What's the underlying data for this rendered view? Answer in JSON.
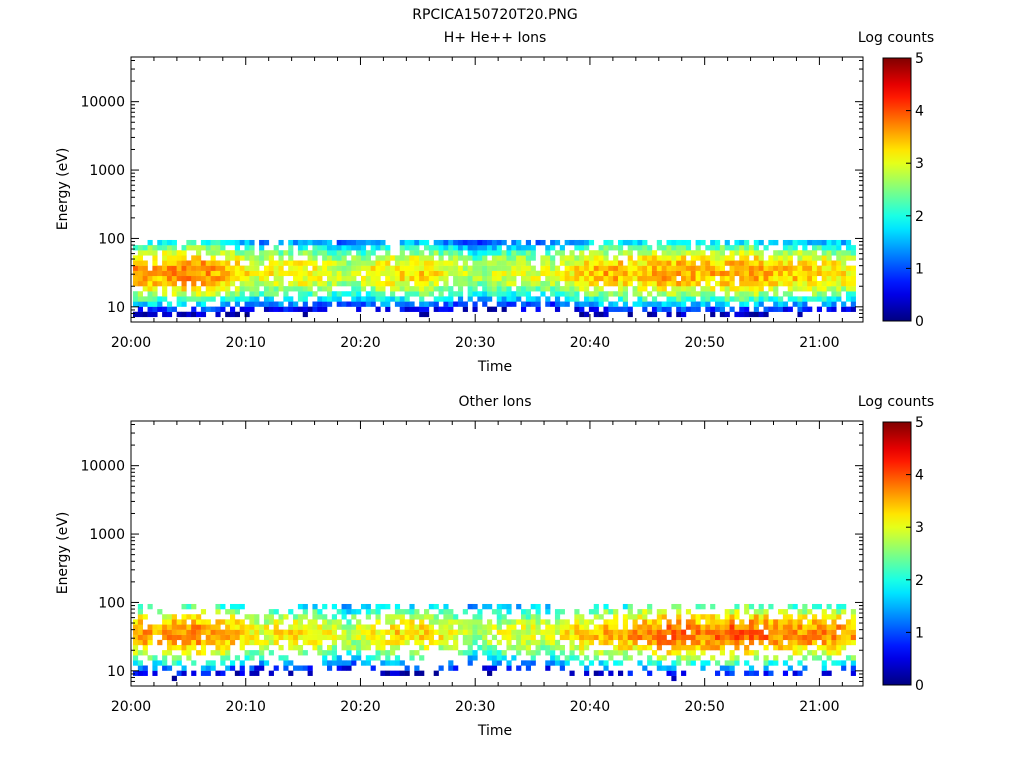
{
  "figure_title": "RPCICA150720T20.PNG",
  "chart_data": [
    {
      "type": "heatmap",
      "title": "H+ He++ Ions",
      "xlabel": "Time",
      "ylabel": "Energy (eV)",
      "x_ticks": [
        "20:00",
        "20:10",
        "20:20",
        "20:30",
        "20:40",
        "20:50",
        "21:00"
      ],
      "y_scale": "log",
      "y_ticks": [
        "10",
        "100",
        "1000",
        "10000"
      ],
      "ylim": [
        6,
        45000
      ],
      "colorbar": {
        "label": "Log counts",
        "range": [
          0,
          5
        ],
        "ticks": [
          "0",
          "1",
          "2",
          "3",
          "4",
          "5"
        ]
      },
      "energy_band_eV": [
        6,
        95
      ],
      "peak_energy_eV": 32,
      "peak_log_counts_by_time": [
        {
          "time": "20:01",
          "value": 3.9
        },
        {
          "time": "20:05",
          "value": 4.0
        },
        {
          "time": "20:14",
          "value": 3.5
        },
        {
          "time": "20:24",
          "value": 3.6
        },
        {
          "time": "20:34",
          "value": 3.3
        },
        {
          "time": "20:42",
          "value": 3.8
        },
        {
          "time": "20:47",
          "value": 3.9
        },
        {
          "time": "20:53",
          "value": 3.9
        },
        {
          "time": "20:58",
          "value": 3.7
        },
        {
          "time": "21:00",
          "value": 3.6
        }
      ]
    },
    {
      "type": "heatmap",
      "title": "Other Ions",
      "xlabel": "Time",
      "ylabel": "Energy (eV)",
      "x_ticks": [
        "20:00",
        "20:10",
        "20:20",
        "20:30",
        "20:40",
        "20:50",
        "21:00"
      ],
      "y_scale": "log",
      "y_ticks": [
        "10",
        "100",
        "1000",
        "10000"
      ],
      "ylim": [
        6,
        45000
      ],
      "colorbar": {
        "label": "Log counts",
        "range": [
          0,
          5
        ],
        "ticks": [
          "0",
          "1",
          "2",
          "3",
          "4",
          "5"
        ]
      },
      "energy_band_eV": [
        6,
        95
      ],
      "peak_energy_eV": 35,
      "peak_log_counts_by_time": [
        {
          "time": "20:01",
          "value": 3.9
        },
        {
          "time": "20:05",
          "value": 4.0
        },
        {
          "time": "20:14",
          "value": 3.5
        },
        {
          "time": "20:24",
          "value": 3.6
        },
        {
          "time": "20:34",
          "value": 3.3
        },
        {
          "time": "20:42",
          "value": 3.8
        },
        {
          "time": "20:47",
          "value": 4.1
        },
        {
          "time": "20:53",
          "value": 4.2
        },
        {
          "time": "20:58",
          "value": 3.8
        },
        {
          "time": "21:00",
          "value": 4.0
        }
      ]
    }
  ]
}
